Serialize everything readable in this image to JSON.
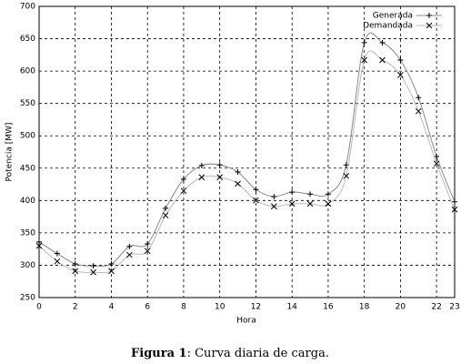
{
  "chart_data": {
    "type": "line",
    "x": [
      0,
      1,
      2,
      3,
      4,
      5,
      6,
      7,
      8,
      9,
      10,
      11,
      12,
      13,
      14,
      15,
      16,
      17,
      18,
      19,
      20,
      21,
      22,
      23
    ],
    "series": [
      {
        "name": "Generada",
        "color": "#888888",
        "marker": "+",
        "values": [
          336,
          318,
          302,
          299,
          302,
          329,
          333,
          388,
          433,
          454,
          455,
          444,
          417,
          406,
          413,
          410,
          410,
          455,
          644,
          644,
          617,
          559,
          468,
          398
        ]
      },
      {
        "name": "Demandada",
        "color": "#b8b8b8",
        "marker": "x",
        "values": [
          330,
          306,
          291,
          289,
          291,
          316,
          322,
          377,
          415,
          436,
          436,
          426,
          400,
          391,
          395,
          395,
          395,
          438,
          617,
          617,
          594,
          538,
          457,
          386
        ]
      }
    ],
    "xlim": [
      0,
      23
    ],
    "xticks": [
      0,
      2,
      4,
      6,
      8,
      10,
      12,
      14,
      16,
      18,
      20,
      22,
      23
    ],
    "ylim": [
      250,
      700
    ],
    "yticks": [
      250,
      300,
      350,
      400,
      450,
      500,
      550,
      600,
      650,
      700
    ],
    "xlabel": "Hora",
    "ylabel": "Potencia [MW]",
    "grid": true,
    "legend": "top-right",
    "caption_label": "Figura 1",
    "caption_text": ": Curva diaria de carga."
  }
}
